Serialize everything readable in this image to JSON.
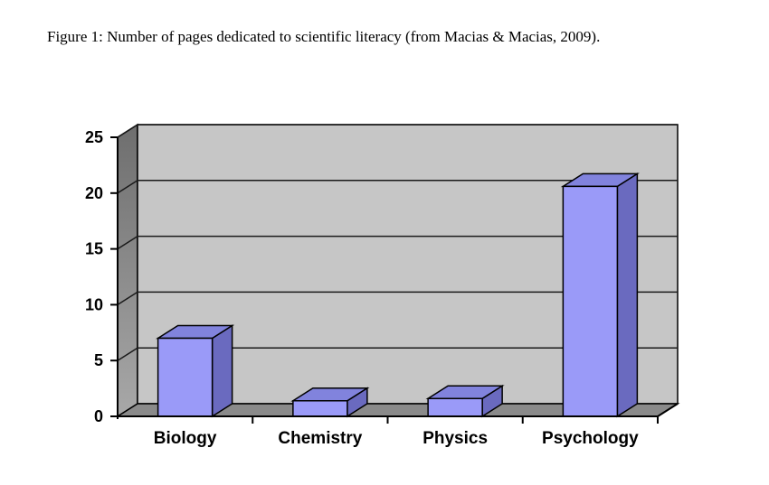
{
  "caption": "Figure 1: Number of pages dedicated to scientific literacy (from Macias & Macias, 2009).",
  "chart_data": {
    "type": "bar",
    "style": "3d-column",
    "title": "",
    "xlabel": "",
    "ylabel": "",
    "categories": [
      "Biology",
      "Chemistry",
      "Physics",
      "Psychology"
    ],
    "values": [
      7,
      1.4,
      1.6,
      20.6
    ],
    "ylim": [
      0,
      25
    ],
    "yticks": [
      0,
      5,
      10,
      15,
      20,
      25
    ],
    "grid": true,
    "legend": false,
    "colors": {
      "bar_front": "#9a9af8",
      "bar_top": "#8183dd",
      "bar_side": "#6a6abf",
      "bar_outline": "#16163f",
      "back_wall": "#c6c6c6",
      "left_wall_top": "#6e6e6e",
      "left_wall_bottom": "#a8a8a8",
      "floor": "#8a8a8a",
      "gridline": "#1a1a1a",
      "axis": "#000000",
      "text": "#000000"
    }
  }
}
